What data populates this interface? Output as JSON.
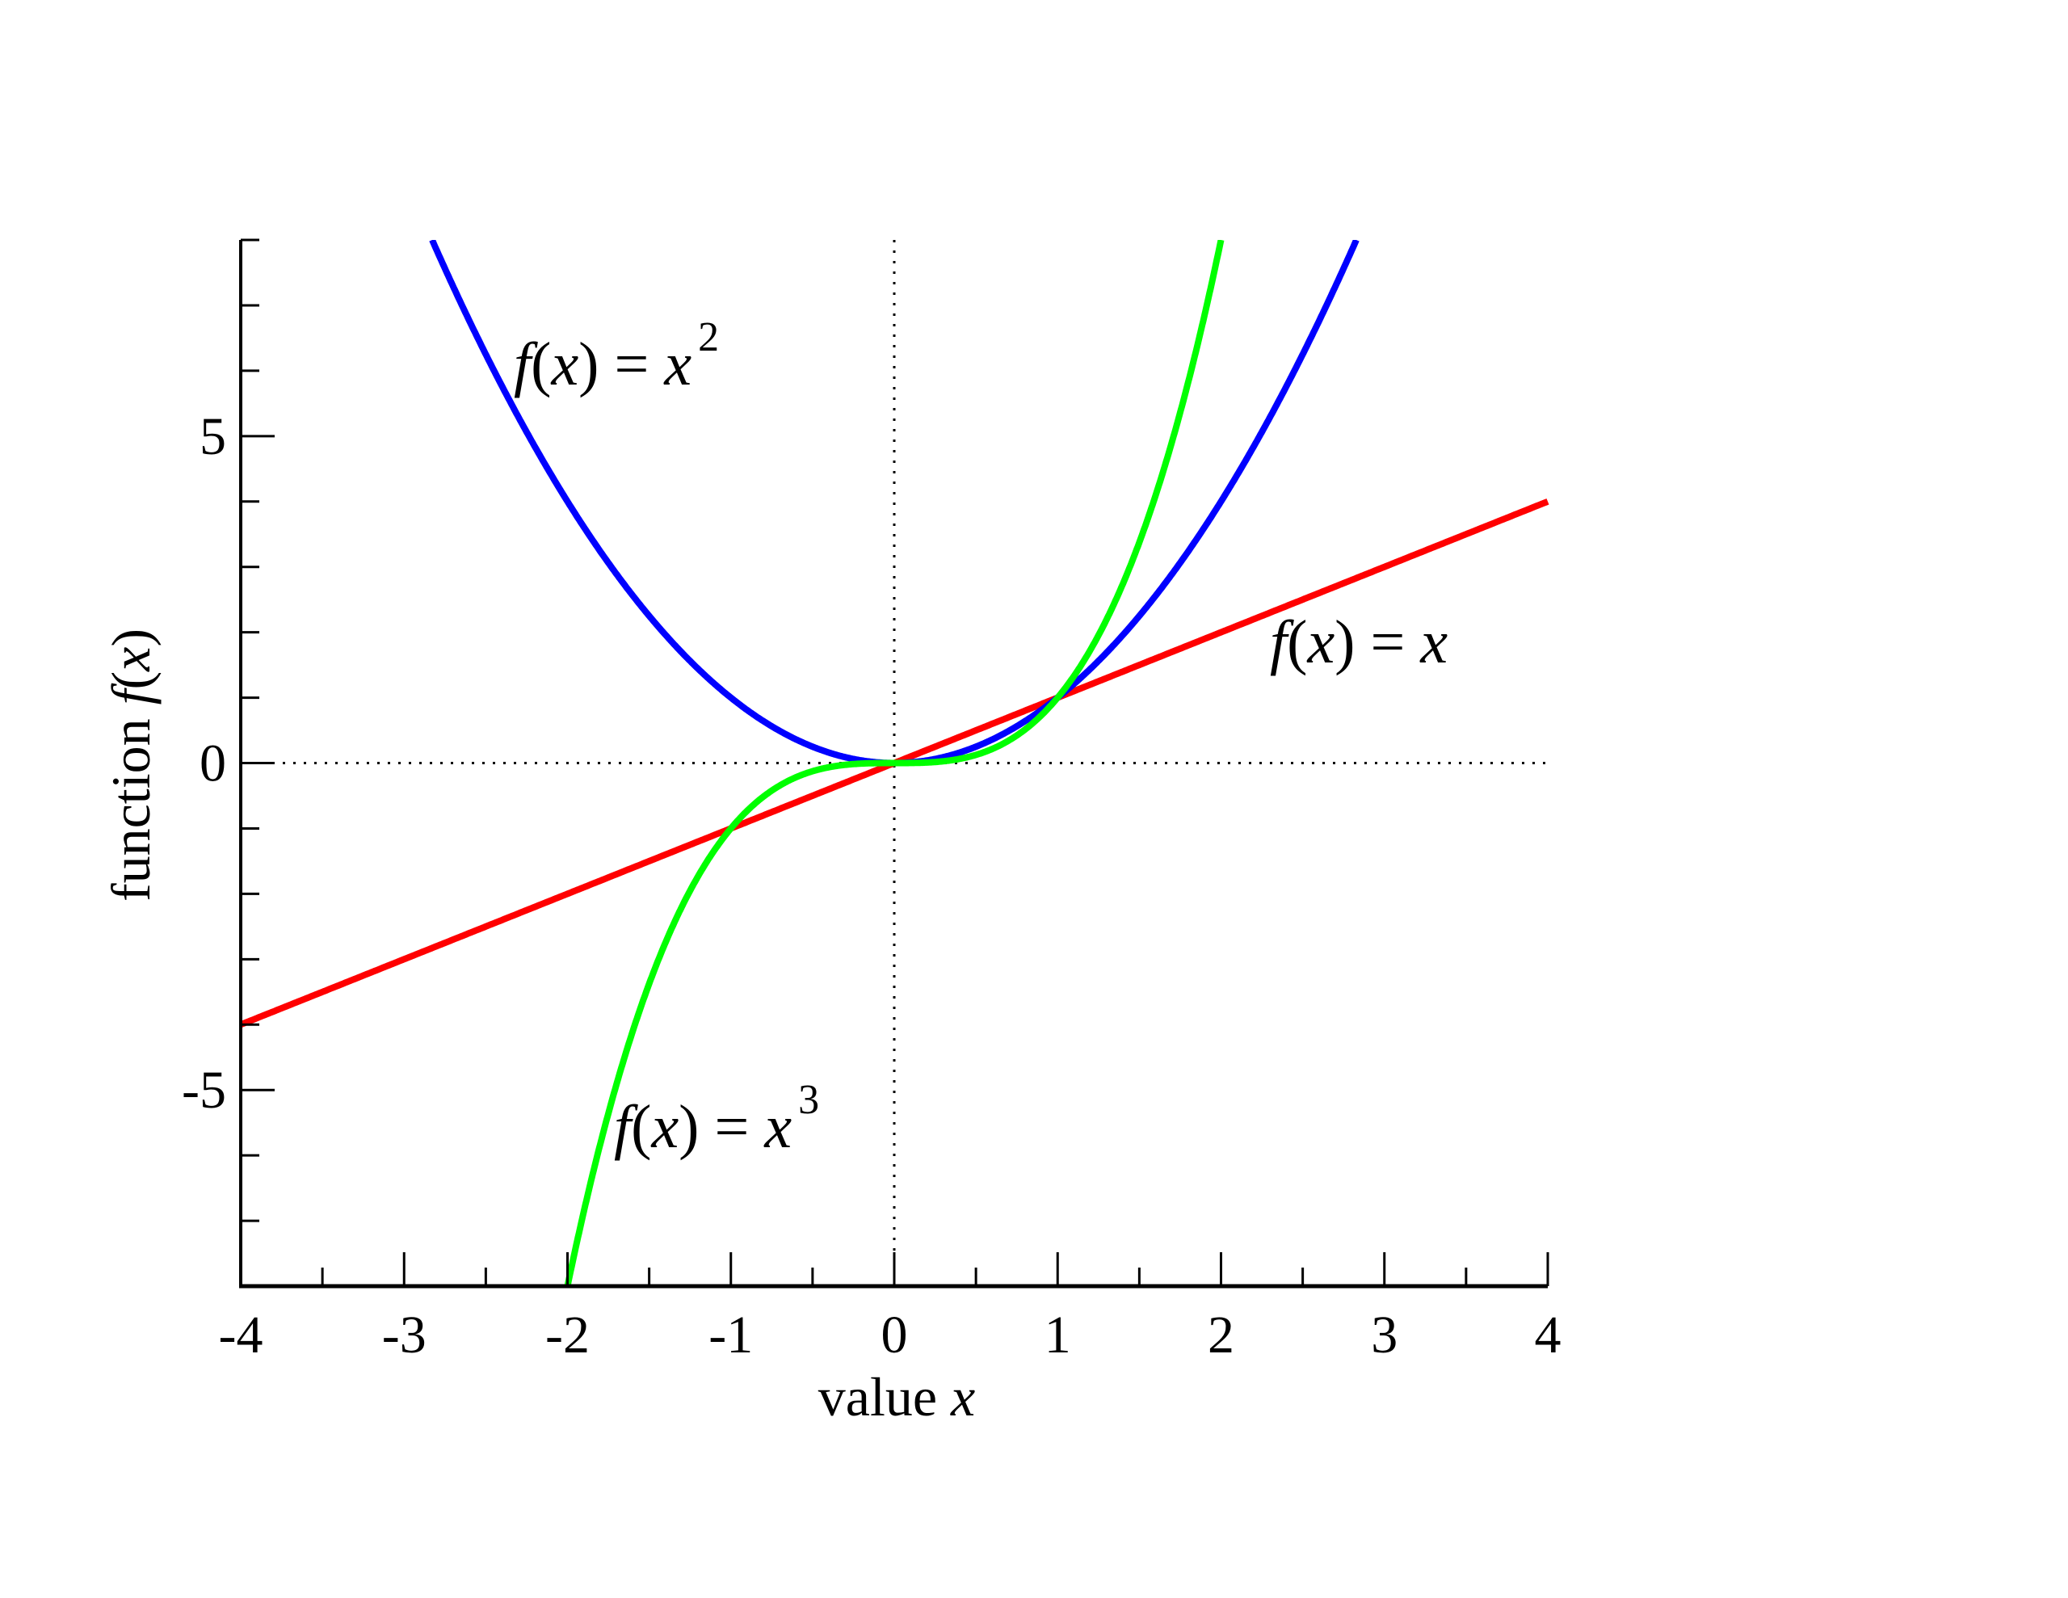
{
  "chart_data": {
    "type": "line",
    "title": "",
    "xlabel": "value x",
    "xlabel_parts": {
      "text": "value ",
      "var": "x"
    },
    "ylabel": "function f(x)",
    "ylabel_parts": {
      "text": "function ",
      "f": "f",
      "open": "(",
      "var": "x",
      "close": ")"
    },
    "xlim": [
      -4,
      4
    ],
    "ylim": [
      -8,
      8
    ],
    "x_major_ticks": [
      -4,
      -3,
      -2,
      -1,
      0,
      1,
      2,
      3,
      4
    ],
    "x_minor_step": 0.5,
    "y_major_ticks": [
      -5,
      0,
      5
    ],
    "y_minor_step": 1,
    "x_tick_labels": [
      "-4",
      "-3",
      "-2",
      "-1",
      "0",
      "1",
      "2",
      "3",
      "4"
    ],
    "y_tick_labels": [
      "-5",
      "0",
      "5"
    ],
    "grid": false,
    "zero_lines": "dotted",
    "series": [
      {
        "name": "f(x) = x",
        "power": 1,
        "color": "#ff0000",
        "label": {
          "f": "f",
          "open": "(",
          "var": "x",
          "close": ")",
          "eq": " = ",
          "rhs": "x",
          "sup": ""
        },
        "values_at_integers": {
          "x": [
            -4,
            -3,
            -2,
            -1,
            0,
            1,
            2,
            3,
            4
          ],
          "y": [
            -4,
            -3,
            -2,
            -1,
            0,
            1,
            2,
            3,
            4
          ]
        }
      },
      {
        "name": "f(x) = x^2",
        "power": 2,
        "color": "#0000ff",
        "label": {
          "f": "f",
          "open": "(",
          "var": "x",
          "close": ")",
          "eq": " = ",
          "rhs": "x",
          "sup": "2"
        },
        "values_at_integers": {
          "x": [
            -2,
            -1,
            0,
            1,
            2
          ],
          "y": [
            4,
            1,
            0,
            1,
            4
          ]
        }
      },
      {
        "name": "f(x) = x^3",
        "power": 3,
        "color": "#00ff00",
        "label": {
          "f": "f",
          "open": "(",
          "var": "x",
          "close": ")",
          "eq": " = ",
          "rhs": "x",
          "sup": "3"
        },
        "values_at_integers": {
          "x": [
            -2,
            -1,
            0,
            1,
            2
          ],
          "y": [
            -8,
            -1,
            0,
            1,
            8
          ]
        }
      }
    ]
  }
}
